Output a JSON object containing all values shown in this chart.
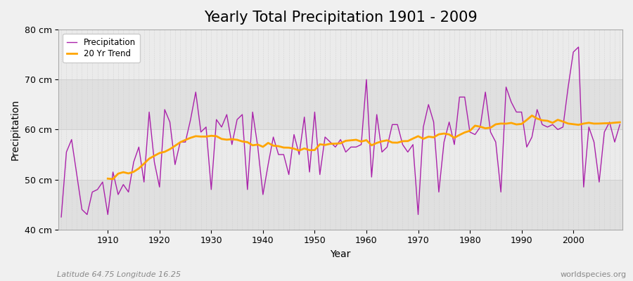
{
  "title": "Yearly Total Precipitation 1901 - 2009",
  "xlabel": "Year",
  "ylabel": "Precipitation",
  "subtitle": "Latitude 64.75 Longitude 16.25",
  "watermark": "worldspecies.org",
  "years": [
    1901,
    1902,
    1903,
    1904,
    1905,
    1906,
    1907,
    1908,
    1909,
    1910,
    1911,
    1912,
    1913,
    1914,
    1915,
    1916,
    1917,
    1918,
    1919,
    1920,
    1921,
    1922,
    1923,
    1924,
    1925,
    1926,
    1927,
    1928,
    1929,
    1930,
    1931,
    1932,
    1933,
    1934,
    1935,
    1936,
    1937,
    1938,
    1939,
    1940,
    1941,
    1942,
    1943,
    1944,
    1945,
    1946,
    1947,
    1948,
    1949,
    1950,
    1951,
    1952,
    1953,
    1954,
    1955,
    1956,
    1957,
    1958,
    1959,
    1960,
    1961,
    1962,
    1963,
    1964,
    1965,
    1966,
    1967,
    1968,
    1969,
    1970,
    1971,
    1972,
    1973,
    1974,
    1975,
    1976,
    1977,
    1978,
    1979,
    1980,
    1981,
    1982,
    1983,
    1984,
    1985,
    1986,
    1987,
    1988,
    1989,
    1990,
    1991,
    1992,
    1993,
    1994,
    1995,
    1996,
    1997,
    1998,
    1999,
    2000,
    2001,
    2002,
    2003,
    2004,
    2005,
    2006,
    2007,
    2008,
    2009
  ],
  "precip": [
    42.5,
    55.5,
    58.0,
    51.0,
    44.0,
    43.0,
    47.5,
    48.0,
    49.5,
    43.0,
    51.5,
    47.0,
    49.0,
    47.5,
    53.5,
    56.5,
    49.5,
    63.5,
    53.5,
    48.5,
    64.0,
    61.5,
    53.0,
    57.5,
    57.5,
    62.0,
    67.5,
    59.5,
    60.5,
    48.0,
    62.0,
    60.5,
    63.0,
    57.0,
    62.0,
    63.0,
    48.0,
    63.5,
    56.5,
    47.0,
    53.0,
    58.5,
    55.0,
    55.0,
    51.0,
    59.0,
    55.0,
    62.5,
    51.5,
    63.5,
    51.0,
    58.5,
    57.5,
    56.5,
    58.0,
    55.5,
    56.5,
    56.5,
    57.0,
    70.0,
    50.5,
    63.0,
    55.5,
    56.5,
    61.0,
    61.0,
    57.0,
    55.5,
    57.0,
    43.0,
    60.5,
    65.0,
    61.5,
    47.5,
    57.5,
    61.5,
    57.0,
    66.5,
    66.5,
    59.5,
    59.0,
    60.5,
    67.5,
    59.5,
    57.5,
    47.5,
    68.5,
    65.5,
    63.5,
    63.5,
    56.5,
    58.5,
    64.0,
    61.0,
    60.5,
    61.0,
    60.0,
    60.5,
    68.5,
    75.5,
    76.5,
    48.5,
    60.5,
    57.5,
    49.5,
    59.5,
    61.5,
    57.5,
    61.0
  ],
  "precip_color": "#AA22AA",
  "trend_color": "#FFA500",
  "fig_bg_color": "#F0F0F0",
  "plot_bg_color": "#F0F0F0",
  "band_color_light": "#EBEBEB",
  "band_color_dark": "#E0E0E0",
  "ylim_min": 40,
  "ylim_max": 80,
  "yticks": [
    40,
    50,
    60,
    70,
    80
  ],
  "ytick_labels": [
    "40 cm",
    "50 cm",
    "60 cm",
    "70 cm",
    "80 cm"
  ],
  "xticks": [
    1910,
    1920,
    1930,
    1940,
    1950,
    1960,
    1970,
    1980,
    1990,
    2000
  ],
  "grid_color": "#CCCCCC",
  "title_fontsize": 15,
  "label_fontsize": 10,
  "tick_fontsize": 9,
  "trend_window": 20
}
